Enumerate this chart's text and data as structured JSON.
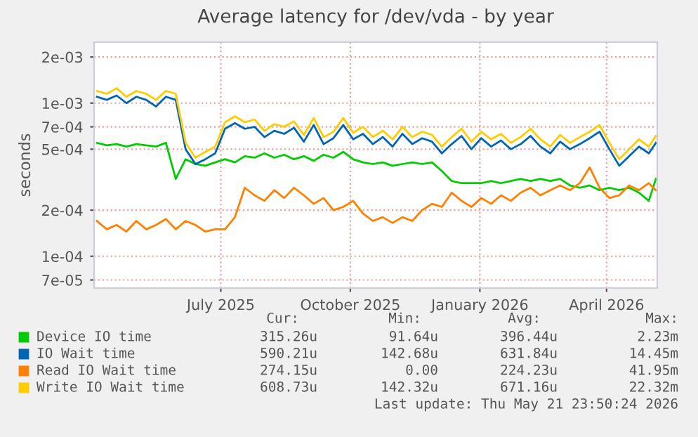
{
  "chart_data": {
    "type": "line",
    "title": "Average latency for /dev/vda - by year",
    "ylabel": "seconds",
    "x": [
      "2025-04-19",
      "2025-04-26",
      "2025-05-03",
      "2025-05-10",
      "2025-05-17",
      "2025-05-24",
      "2025-05-31",
      "2025-06-07",
      "2025-06-14",
      "2025-06-21",
      "2025-06-28",
      "2025-07-05",
      "2025-07-12",
      "2025-07-19",
      "2025-07-26",
      "2025-08-02",
      "2025-08-09",
      "2025-08-16",
      "2025-08-23",
      "2025-08-30",
      "2025-09-06",
      "2025-09-13",
      "2025-09-20",
      "2025-09-27",
      "2025-10-04",
      "2025-10-11",
      "2025-10-18",
      "2025-10-25",
      "2025-11-01",
      "2025-11-08",
      "2025-11-15",
      "2025-11-22",
      "2025-11-29",
      "2025-12-06",
      "2025-12-13",
      "2025-12-20",
      "2025-12-27",
      "2026-01-03",
      "2026-01-10",
      "2026-01-17",
      "2026-01-24",
      "2026-01-31",
      "2026-02-07",
      "2026-02-14",
      "2026-02-21",
      "2026-02-28",
      "2026-03-07",
      "2026-03-14",
      "2026-03-21",
      "2026-03-28",
      "2026-04-04",
      "2026-04-11",
      "2026-04-18",
      "2026-04-25",
      "2026-05-02",
      "2026-05-09",
      "2026-05-16",
      "2026-05-21"
    ],
    "series": [
      {
        "name": "Device IO time",
        "color": "#00cc00",
        "values": [
          0.00055,
          0.00053,
          0.00054,
          0.00052,
          0.00054,
          0.00053,
          0.00052,
          0.00055,
          0.00032,
          0.00043,
          0.0004,
          0.00039,
          0.00041,
          0.00043,
          0.00041,
          0.00045,
          0.00044,
          0.00047,
          0.00044,
          0.00046,
          0.00043,
          0.00045,
          0.00042,
          0.00046,
          0.00044,
          0.00048,
          0.00043,
          0.00041,
          0.0004,
          0.00041,
          0.00039,
          0.0004,
          0.00041,
          0.0004,
          0.00041,
          0.00036,
          0.00031,
          0.0003,
          0.0003,
          0.0003,
          0.00031,
          0.0003,
          0.00031,
          0.00032,
          0.00031,
          0.00032,
          0.00031,
          0.00032,
          0.00029,
          0.00028,
          0.00029,
          0.00027,
          0.00028,
          0.00027,
          0.00028,
          0.00026,
          0.00023,
          0.00032
        ]
      },
      {
        "name": "IO Wait time",
        "color": "#0066b3",
        "values": [
          0.0011,
          0.00105,
          0.00112,
          0.001,
          0.0011,
          0.00105,
          0.00095,
          0.0011,
          0.00105,
          0.0005,
          0.0004,
          0.00043,
          0.00047,
          0.00068,
          0.00074,
          0.00068,
          0.0007,
          0.0006,
          0.00066,
          0.00063,
          0.00069,
          0.00056,
          0.00072,
          0.00054,
          0.00059,
          0.00072,
          0.00058,
          0.00063,
          0.00054,
          0.0006,
          0.00052,
          0.00063,
          0.00054,
          0.00059,
          0.00056,
          0.00047,
          0.00054,
          0.00061,
          0.0005,
          0.00059,
          0.00052,
          0.00057,
          0.0005,
          0.00054,
          0.00061,
          0.00052,
          0.00047,
          0.00056,
          0.0005,
          0.00054,
          0.00059,
          0.00065,
          0.0005,
          0.00039,
          0.00045,
          0.00052,
          0.00047,
          0.00055
        ]
      },
      {
        "name": "Read IO Wait time",
        "color": "#ff8000",
        "values": [
          0.00017,
          0.00015,
          0.00016,
          0.000145,
          0.00017,
          0.00015,
          0.00016,
          0.000175,
          0.00015,
          0.00017,
          0.00016,
          0.000145,
          0.00015,
          0.00015,
          0.00018,
          0.00028,
          0.00025,
          0.00023,
          0.00027,
          0.00024,
          0.00028,
          0.00025,
          0.00022,
          0.00024,
          0.0002,
          0.00021,
          0.00023,
          0.00019,
          0.00017,
          0.00018,
          0.000165,
          0.00018,
          0.00017,
          0.0002,
          0.00022,
          0.00021,
          0.00026,
          0.00023,
          0.00021,
          0.00024,
          0.00022,
          0.00025,
          0.00023,
          0.00026,
          0.00028,
          0.00025,
          0.00027,
          0.00029,
          0.00027,
          0.0003,
          0.00038,
          0.00028,
          0.00024,
          0.00025,
          0.00029,
          0.00027,
          0.0003,
          0.00027
        ]
      },
      {
        "name": "Write IO Wait time",
        "color": "#ffcc00",
        "values": [
          0.0012,
          0.00115,
          0.00125,
          0.0011,
          0.0012,
          0.00115,
          0.00105,
          0.0012,
          0.00115,
          0.00055,
          0.00044,
          0.00048,
          0.00052,
          0.00075,
          0.00082,
          0.00075,
          0.00078,
          0.00066,
          0.00073,
          0.0007,
          0.00076,
          0.00062,
          0.0008,
          0.0006,
          0.00065,
          0.0008,
          0.00064,
          0.0007,
          0.0006,
          0.00066,
          0.00058,
          0.0007,
          0.0006,
          0.00065,
          0.00062,
          0.00052,
          0.0006,
          0.00068,
          0.00056,
          0.00065,
          0.00058,
          0.00063,
          0.00055,
          0.0006,
          0.00068,
          0.00058,
          0.00052,
          0.00062,
          0.00055,
          0.0006,
          0.00065,
          0.00072,
          0.00055,
          0.00043,
          0.0005,
          0.00058,
          0.00052,
          0.00061
        ]
      }
    ],
    "log": "y",
    "ylim": [
      6.2e-05,
      0.0025
    ],
    "yticks": [
      {
        "value": 7e-05,
        "label": "7e-05"
      },
      {
        "value": 0.0001,
        "label": "1e-04"
      },
      {
        "value": 0.0002,
        "label": "2e-04"
      },
      {
        "value": 0.0005,
        "label": "5e-04"
      },
      {
        "value": 0.0007,
        "label": "7e-04"
      },
      {
        "value": 0.001,
        "label": "1e-03"
      },
      {
        "value": 0.002,
        "label": "2e-03"
      }
    ],
    "xlim": [
      "2025-04-17",
      "2026-05-22"
    ],
    "xticks": [
      {
        "value": "2025-07-16",
        "label": "July 2025"
      },
      {
        "value": "2025-10-16",
        "label": "October 2025"
      },
      {
        "value": "2026-01-16",
        "label": "January 2026"
      },
      {
        "value": "2026-04-16",
        "label": "April 2026"
      }
    ],
    "grid": true,
    "legend": "bottom",
    "annotations": [
      "Cur:",
      "Min:",
      "Avg:",
      "Max:",
      "315.26u",
      "91.64u",
      "396.44u",
      "2.23m",
      "590.21u",
      "142.68u",
      "631.84u",
      "14.45m",
      "274.15u",
      "0.00",
      "224.23u",
      "41.95m",
      "608.73u",
      "142.32u",
      "671.16u",
      "22.32m",
      "Last update: Thu May 21 23:50:24 2026"
    ]
  }
}
